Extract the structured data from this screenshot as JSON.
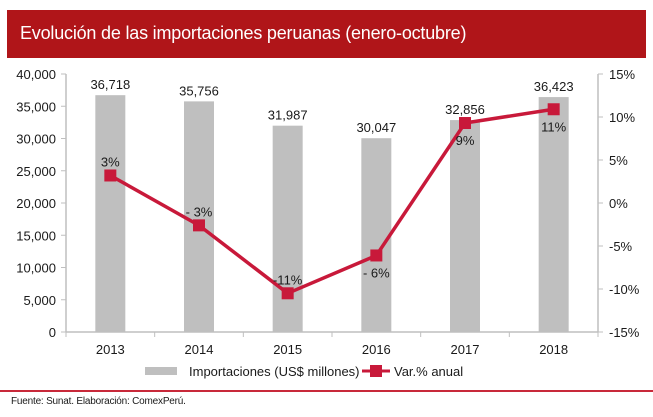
{
  "title": "Evolución de las importaciones peruanas (enero-octubre)",
  "source": "Fuente: Sunat. Elaboración: ComexPerú.",
  "colors": {
    "header": "#b01519",
    "bars": "#bfbfbf",
    "line": "#c8193a",
    "axis": "#bfbfbf",
    "footer_rule": "#c8293a"
  },
  "chart_data": {
    "type": "bar",
    "title": "Evolución de las importaciones peruanas (enero-octubre)",
    "categories": [
      "2013",
      "2014",
      "2015",
      "2016",
      "2017",
      "2018"
    ],
    "series": [
      {
        "name": "Importaciones (US$ millones)",
        "type": "bar",
        "axis": "left",
        "values": [
          36718,
          35756,
          31987,
          30047,
          32856,
          36423
        ],
        "labels": [
          "36,718",
          "35,756",
          "31,987",
          "30,047",
          "32,856",
          "36,423"
        ]
      },
      {
        "name": "Var.% anual",
        "type": "line",
        "axis": "right",
        "values": [
          3.2,
          -2.6,
          -10.5,
          -6.1,
          9.3,
          10.9
        ],
        "labels": [
          "3%",
          "- 3%",
          "-11%",
          "- 6%",
          "9%",
          "11%"
        ]
      }
    ],
    "y_left": {
      "min": 0,
      "max": 40000,
      "step": 5000,
      "ticks": [
        "0",
        "5,000",
        "10,000",
        "15,000",
        "20,000",
        "25,000",
        "30,000",
        "35,000",
        "40,000"
      ]
    },
    "y_right": {
      "min": -15,
      "max": 15,
      "step": 5,
      "ticks": [
        "-15%",
        "-10%",
        "-5%",
        "0%",
        "5%",
        "10%",
        "15%"
      ]
    },
    "xlabel": "",
    "ylabel": "",
    "grid": false,
    "legend": {
      "position": "bottom",
      "entries": [
        "Importaciones (US$ millones)",
        "Var.% anual"
      ]
    }
  }
}
